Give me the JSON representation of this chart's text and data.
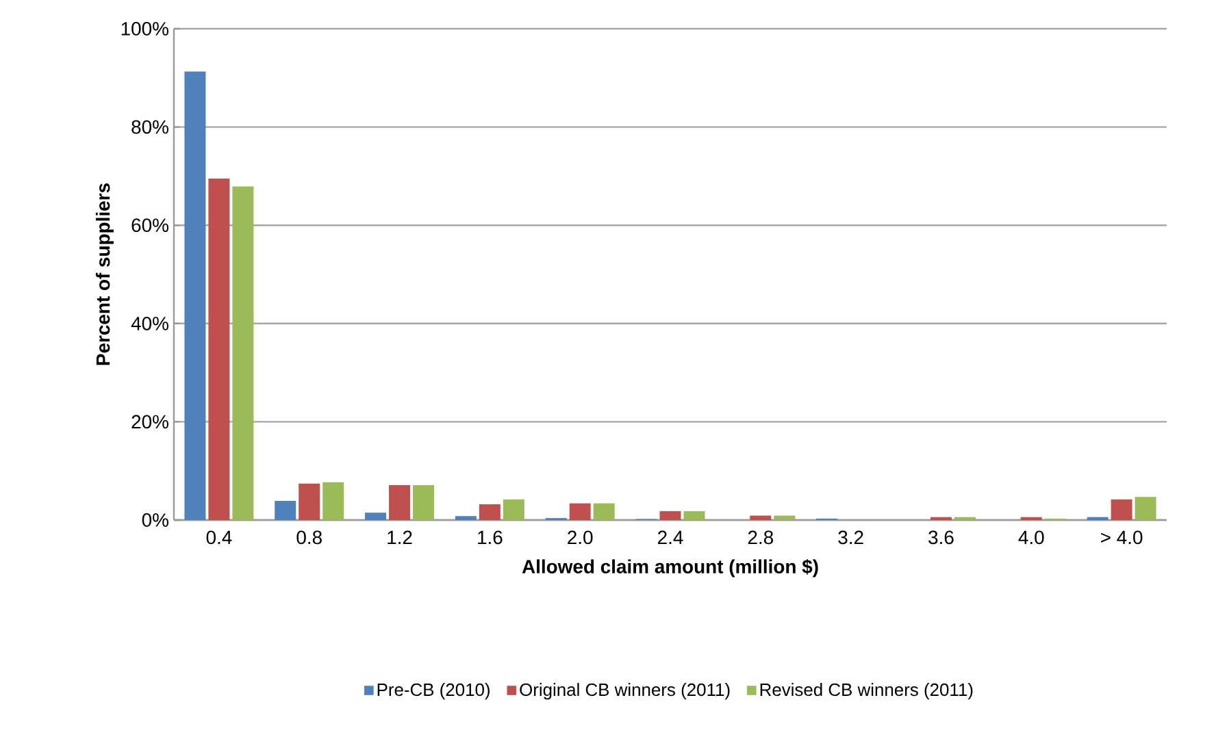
{
  "chart_data": {
    "type": "bar",
    "xlabel": "Allowed claim amount (million $)",
    "ylabel": "Percent of suppliers",
    "categories": [
      "0.4",
      "0.8",
      "1.2",
      "1.6",
      "2.0",
      "2.4",
      "2.8",
      "3.2",
      "3.6",
      "4.0",
      "> 4.0"
    ],
    "series": [
      {
        "name": "Pre-CB (2010)",
        "color": "#4f81bd",
        "values": [
          91.3,
          3.9,
          1.5,
          0.8,
          0.4,
          0.2,
          0,
          0.3,
          0,
          0,
          0.6
        ]
      },
      {
        "name": "Original CB winners (2011)",
        "color": "#c0504d",
        "values": [
          69.5,
          7.4,
          7.1,
          3.2,
          3.4,
          1.8,
          0.9,
          0,
          0.6,
          0.6,
          4.2
        ]
      },
      {
        "name": "Revised CB winners (2011)",
        "color": "#9bbb59",
        "values": [
          67.9,
          7.7,
          7.1,
          4.2,
          3.4,
          1.8,
          0.9,
          0,
          0.6,
          0.3,
          4.7
        ]
      }
    ],
    "ylim": [
      0,
      100
    ],
    "yticks": [
      {
        "value": 0,
        "label": "0%"
      },
      {
        "value": 20,
        "label": "20%"
      },
      {
        "value": 40,
        "label": "40%"
      },
      {
        "value": 60,
        "label": "60%"
      },
      {
        "value": 80,
        "label": "80%"
      },
      {
        "value": 100,
        "label": "100%"
      }
    ],
    "grid": "y",
    "legend": "bottom"
  }
}
